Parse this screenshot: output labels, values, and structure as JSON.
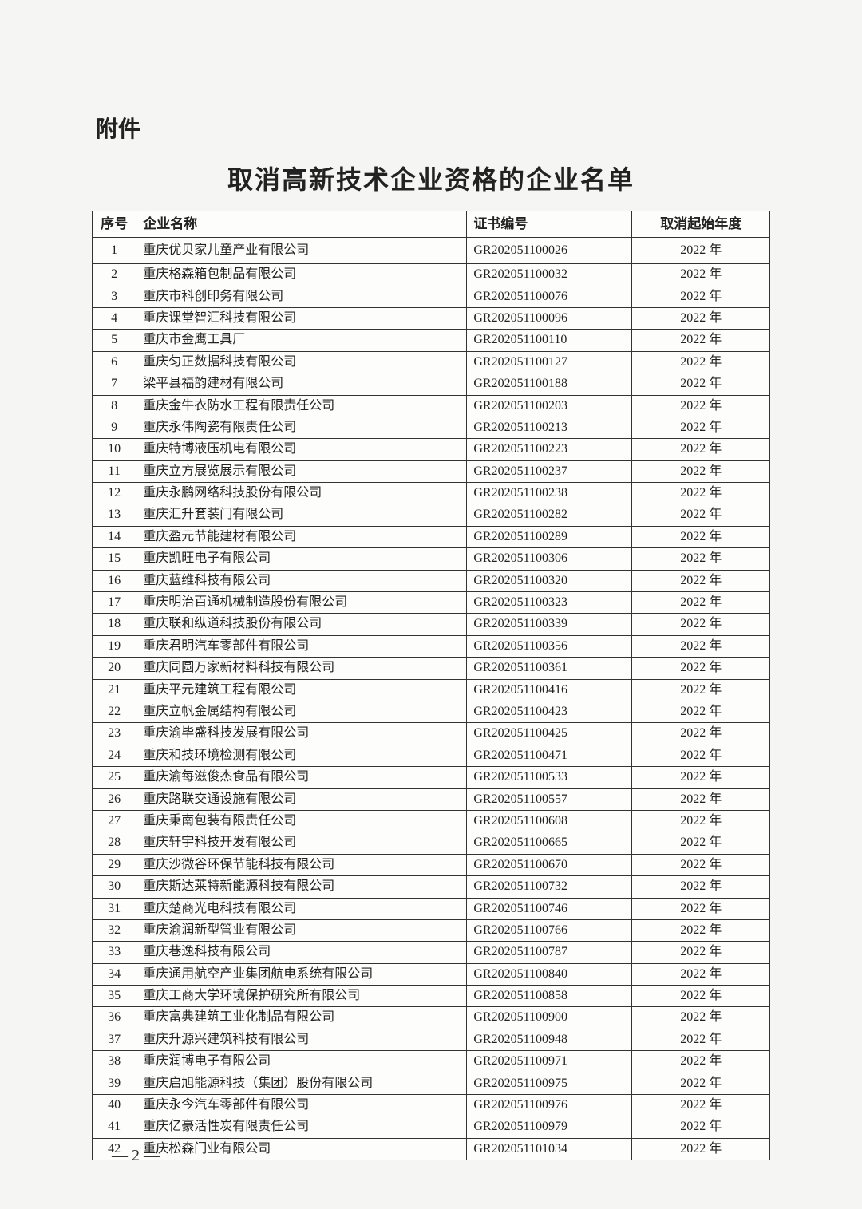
{
  "attachment_label": "附件",
  "title": "取消高新技术企业资格的企业名单",
  "page_number": "— 2 —",
  "table": {
    "columns": [
      "序号",
      "企业名称",
      "证书编号",
      "取消起始年度"
    ],
    "rows": [
      [
        "1",
        "重庆优贝家儿童产业有限公司",
        "GR202051100026",
        "2022 年"
      ],
      [
        "2",
        "重庆格森箱包制品有限公司",
        "GR202051100032",
        "2022 年"
      ],
      [
        "3",
        "重庆市科创印务有限公司",
        "GR202051100076",
        "2022 年"
      ],
      [
        "4",
        "重庆课堂智汇科技有限公司",
        "GR202051100096",
        "2022 年"
      ],
      [
        "5",
        "重庆市金鹰工具厂",
        "GR202051100110",
        "2022 年"
      ],
      [
        "6",
        "重庆匀正数据科技有限公司",
        "GR202051100127",
        "2022 年"
      ],
      [
        "7",
        "梁平县福韵建材有限公司",
        "GR202051100188",
        "2022 年"
      ],
      [
        "8",
        "重庆金牛衣防水工程有限责任公司",
        "GR202051100203",
        "2022 年"
      ],
      [
        "9",
        "重庆永伟陶瓷有限责任公司",
        "GR202051100213",
        "2022 年"
      ],
      [
        "10",
        "重庆特博液压机电有限公司",
        "GR202051100223",
        "2022 年"
      ],
      [
        "11",
        "重庆立方展览展示有限公司",
        "GR202051100237",
        "2022 年"
      ],
      [
        "12",
        "重庆永鹏网络科技股份有限公司",
        "GR202051100238",
        "2022 年"
      ],
      [
        "13",
        "重庆汇升套装门有限公司",
        "GR202051100282",
        "2022 年"
      ],
      [
        "14",
        "重庆盈元节能建材有限公司",
        "GR202051100289",
        "2022 年"
      ],
      [
        "15",
        "重庆凯旺电子有限公司",
        "GR202051100306",
        "2022 年"
      ],
      [
        "16",
        "重庆蓝维科技有限公司",
        "GR202051100320",
        "2022 年"
      ],
      [
        "17",
        "重庆明治百通机械制造股份有限公司",
        "GR202051100323",
        "2022 年"
      ],
      [
        "18",
        "重庆联和纵道科技股份有限公司",
        "GR202051100339",
        "2022 年"
      ],
      [
        "19",
        "重庆君明汽车零部件有限公司",
        "GR202051100356",
        "2022 年"
      ],
      [
        "20",
        "重庆同圆万家新材料科技有限公司",
        "GR202051100361",
        "2022 年"
      ],
      [
        "21",
        "重庆平元建筑工程有限公司",
        "GR202051100416",
        "2022 年"
      ],
      [
        "22",
        "重庆立帆金属结构有限公司",
        "GR202051100423",
        "2022 年"
      ],
      [
        "23",
        "重庆渝毕盛科技发展有限公司",
        "GR202051100425",
        "2022 年"
      ],
      [
        "24",
        "重庆和技环境检测有限公司",
        "GR202051100471",
        "2022 年"
      ],
      [
        "25",
        "重庆渝每滋俊杰食品有限公司",
        "GR202051100533",
        "2022 年"
      ],
      [
        "26",
        "重庆路联交通设施有限公司",
        "GR202051100557",
        "2022 年"
      ],
      [
        "27",
        "重庆秉南包装有限责任公司",
        "GR202051100608",
        "2022 年"
      ],
      [
        "28",
        "重庆轩宇科技开发有限公司",
        "GR202051100665",
        "2022 年"
      ],
      [
        "29",
        "重庆沙微谷环保节能科技有限公司",
        "GR202051100670",
        "2022 年"
      ],
      [
        "30",
        "重庆斯达莱特新能源科技有限公司",
        "GR202051100732",
        "2022 年"
      ],
      [
        "31",
        "重庆楚商光电科技有限公司",
        "GR202051100746",
        "2022 年"
      ],
      [
        "32",
        "重庆渝润新型管业有限公司",
        "GR202051100766",
        "2022 年"
      ],
      [
        "33",
        "重庆巷逸科技有限公司",
        "GR202051100787",
        "2022 年"
      ],
      [
        "34",
        "重庆通用航空产业集团航电系统有限公司",
        "GR202051100840",
        "2022 年"
      ],
      [
        "35",
        "重庆工商大学环境保护研究所有限公司",
        "GR202051100858",
        "2022 年"
      ],
      [
        "36",
        "重庆富典建筑工业化制品有限公司",
        "GR202051100900",
        "2022 年"
      ],
      [
        "37",
        "重庆升源兴建筑科技有限公司",
        "GR202051100948",
        "2022 年"
      ],
      [
        "38",
        "重庆润博电子有限公司",
        "GR202051100971",
        "2022 年"
      ],
      [
        "39",
        "重庆启旭能源科技（集团）股份有限公司",
        "GR202051100975",
        "2022 年"
      ],
      [
        "40",
        "重庆永今汽车零部件有限公司",
        "GR202051100976",
        "2022 年"
      ],
      [
        "41",
        "重庆亿豪活性炭有限责任公司",
        "GR202051100979",
        "2022 年"
      ],
      [
        "42",
        "重庆松森门业有限公司",
        "GR202051101034",
        "2022 年"
      ]
    ]
  },
  "styling": {
    "background_color": "#f5f5f3",
    "text_color": "#222",
    "border_color": "#333",
    "title_fontsize": 32,
    "header_fontsize": 17,
    "cell_fontsize": 16,
    "attachment_fontsize": 28,
    "col_widths": {
      "seq": 48,
      "name": 360,
      "cert": 180,
      "year": 150
    }
  }
}
